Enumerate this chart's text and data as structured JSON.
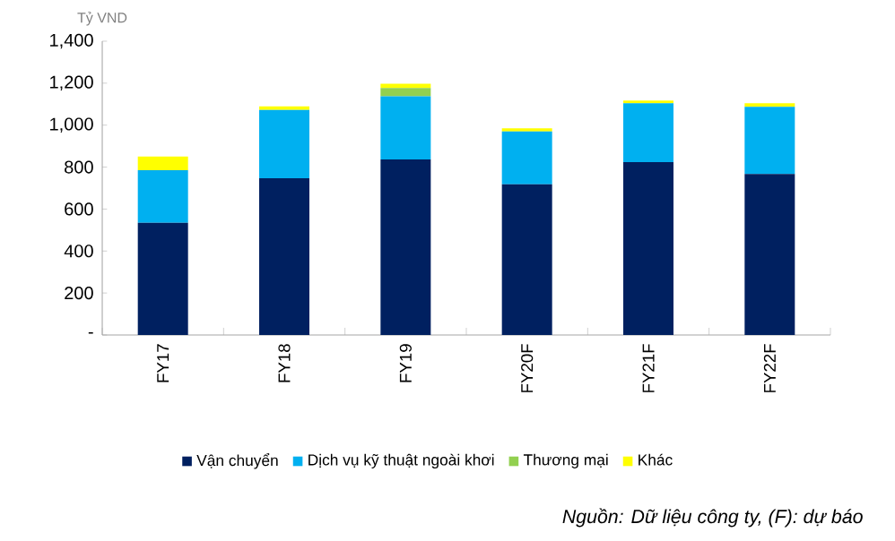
{
  "chart_data": {
    "type": "bar",
    "stacked": true,
    "ylabel": "Tỷ VND",
    "categories": [
      "FY17",
      "FY18",
      "FY19",
      "FY20F",
      "FY21F",
      "FY22F"
    ],
    "series": [
      {
        "name": "Vận chuyển",
        "color": "#002060",
        "values": [
          535,
          747,
          837,
          718,
          824,
          767
        ]
      },
      {
        "name": "Dịch vụ kỹ thuật ngoài khơi",
        "color": "#00b0f0",
        "values": [
          250,
          325,
          300,
          252,
          280,
          320
        ]
      },
      {
        "name": "Thương mại",
        "color": "#92d050",
        "values": [
          0,
          0,
          40,
          0,
          0,
          0
        ]
      },
      {
        "name": "Khác",
        "color": "#ffff00",
        "values": [
          65,
          17,
          20,
          15,
          13,
          17
        ]
      }
    ],
    "ylim": [
      0,
      1400
    ],
    "yticks": [
      {
        "value": 0,
        "label": "-"
      },
      {
        "value": 200,
        "label": "200"
      },
      {
        "value": 400,
        "label": "400"
      },
      {
        "value": 600,
        "label": "600"
      },
      {
        "value": 800,
        "label": "800"
      },
      {
        "value": 1000,
        "label": "1,000"
      },
      {
        "value": 1200,
        "label": "1,200"
      },
      {
        "value": 1400,
        "label": "1,400"
      }
    ],
    "legend": "bottom",
    "annotations": [
      "*Nguồn: Dữ liệu công ty, (F): dự báo*"
    ]
  }
}
